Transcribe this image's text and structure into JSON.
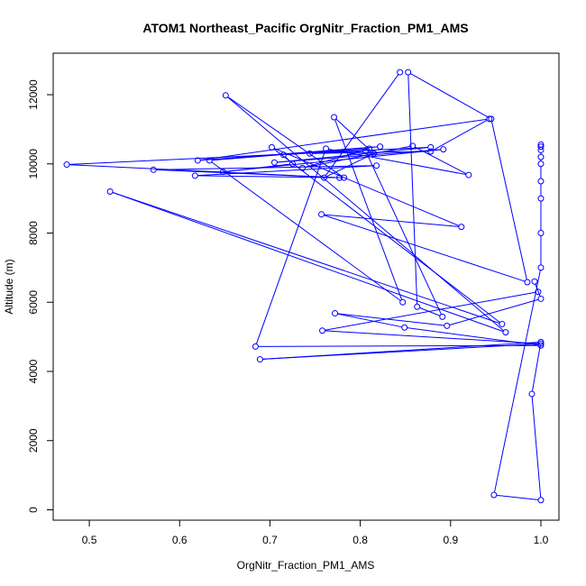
{
  "chart_data": {
    "type": "line",
    "title": "ATOM1 Northeast_Pacific OrgNitr_Fraction_PM1_AMS",
    "xlabel": "OrgNitr_Fraction_PM1_AMS",
    "ylabel": "Altitude (m)",
    "xlim": [
      0.46,
      1.02
    ],
    "ylim": [
      -300,
      13200
    ],
    "x_ticks": [
      0.5,
      0.6,
      0.7,
      0.8,
      0.9,
      1.0
    ],
    "x_tick_labels": [
      "0.5",
      "0.6",
      "0.7",
      "0.8",
      "0.9",
      "1.0"
    ],
    "y_ticks": [
      0,
      2000,
      4000,
      6000,
      8000,
      10000,
      12000
    ],
    "y_tick_labels": [
      "0",
      "2000",
      "4000",
      "6000",
      "8000",
      "10000",
      "12000"
    ],
    "color": "#0000ff",
    "grid": false,
    "markers": "open-circle",
    "series": [
      {
        "x": [
          1.0,
          1.0,
          1.0,
          1.0,
          1.0,
          1.0,
          1.0,
          1.0,
          1.0,
          0.948,
          1.0,
          0.99,
          1.0,
          0.689,
          1.0,
          0.758,
          0.997,
          0.993,
          1.0,
          0.896,
          0.772,
          0.849,
          1.0,
          0.684,
          0.762,
          0.92,
          0.858,
          0.736,
          0.81,
          0.715,
          0.725,
          0.648,
          0.892,
          0.705,
          0.878,
          0.475,
          0.777,
          0.571,
          0.818,
          0.617,
          0.782,
          0.651,
          0.961,
          0.523,
          0.957,
          0.702,
          0.912,
          0.757,
          0.985,
          0.945,
          0.853,
          0.863,
          0.891,
          0.806,
          0.744,
          0.878,
          0.943,
          0.62,
          0.822,
          0.633,
          0.847,
          0.771,
          0.815,
          0.76,
          0.844
        ],
        "y": [
          10560,
          10500,
          10400,
          10200,
          10000,
          9500,
          9000,
          8000,
          7000,
          430,
          280,
          3350,
          4850,
          4350,
          4800,
          5180,
          6300,
          6600,
          6100,
          5320,
          5680,
          5270,
          4750,
          4720,
          10440,
          9680,
          10520,
          9880,
          10440,
          10260,
          10000,
          9770,
          10420,
          10040,
          10480,
          9980,
          9600,
          9830,
          9950,
          9660,
          9600,
          11980,
          5130,
          9200,
          5370,
          10480,
          8180,
          8540,
          6580,
          11300,
          12650,
          5870,
          5580,
          10370,
          10300,
          10360,
          11300,
          10100,
          10500,
          10100,
          6000,
          11350,
          10300,
          9600,
          12650
        ]
      }
    ]
  }
}
